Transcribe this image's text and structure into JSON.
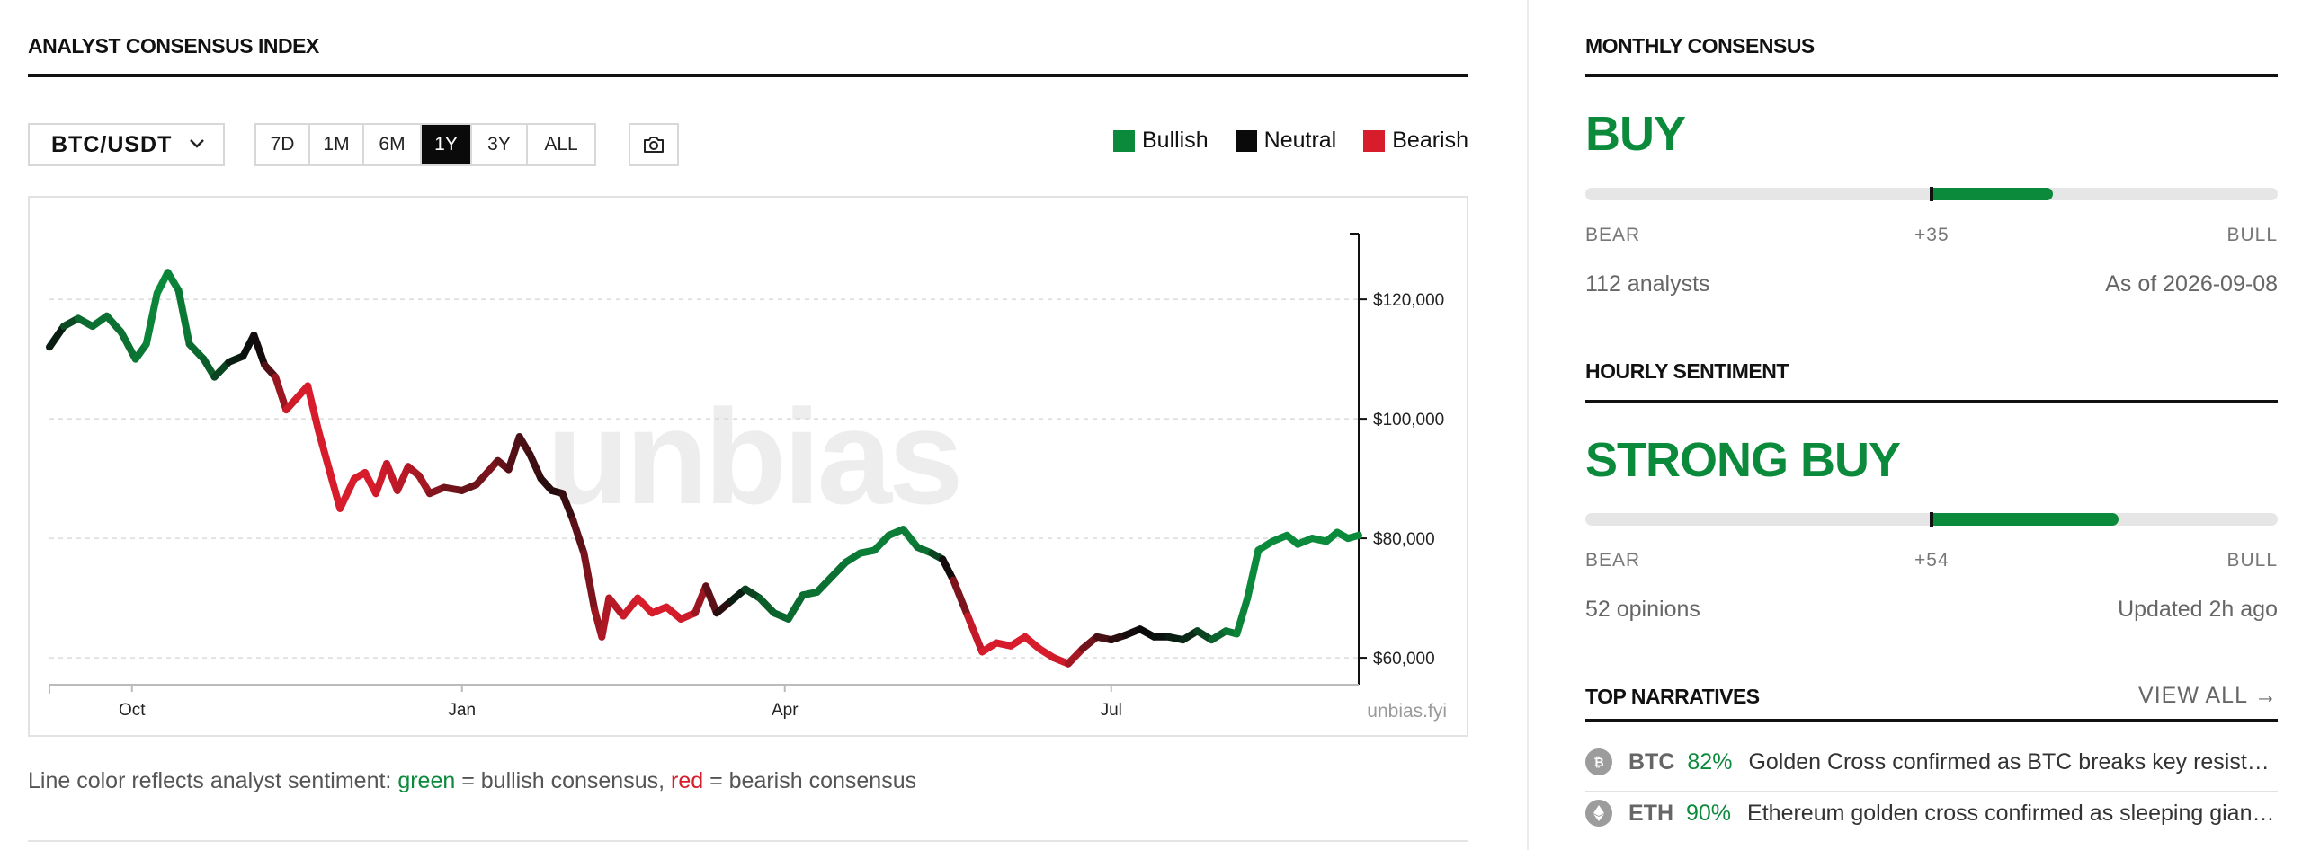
{
  "left": {
    "title": "ANALYST CONSENSUS INDEX",
    "pair": "BTC/USDT",
    "ranges": [
      "7D",
      "1M",
      "6M",
      "1Y",
      "3Y",
      "ALL"
    ],
    "active_range": "1Y",
    "legend": [
      {
        "label": "Bullish",
        "color": "#0b8a3c"
      },
      {
        "label": "Neutral",
        "color": "#0a0a0a"
      },
      {
        "label": "Bearish",
        "color": "#d71c2c"
      }
    ],
    "watermark": "unbias",
    "credit": "unbias.fyi",
    "caption": {
      "prefix": "Line color reflects analyst sentiment: ",
      "green_word": "green",
      "middle": " = bullish consensus, ",
      "red_word": "red",
      "suffix": " = bearish consensus"
    }
  },
  "chart_data": {
    "type": "line",
    "title": "",
    "xlabel": "",
    "ylabel": "",
    "x_ticks": [
      "Oct",
      "Jan",
      "Apr",
      "Jul"
    ],
    "y_ticks": [
      "$60,000",
      "$80,000",
      "$100,000",
      "$120,000"
    ],
    "y_tick_values": [
      60000,
      80000,
      100000,
      120000
    ],
    "ylim": [
      55500,
      131000
    ],
    "xlim": [
      "2025-09-08",
      "2026-09-08"
    ],
    "grid": "horizontal dashed",
    "axis_side": "right",
    "sentiment_colors": {
      "bullish": "#0b8a3c",
      "neutral": "#0a0a0a",
      "bearish": "#d71c2c"
    },
    "series": [
      {
        "points": [
          [
            "2025-09-08",
            112000,
            0
          ],
          [
            "2025-09-12",
            115500,
            0.3
          ],
          [
            "2025-09-16",
            116800,
            0.7
          ],
          [
            "2025-09-20",
            115500,
            0.8
          ],
          [
            "2025-09-24",
            117200,
            0.8
          ],
          [
            "2025-09-28",
            114500,
            0.8
          ],
          [
            "2025-10-02",
            110000,
            0.8
          ],
          [
            "2025-10-05",
            112500,
            0.9
          ],
          [
            "2025-10-08",
            121000,
            1
          ],
          [
            "2025-10-11",
            124500,
            1
          ],
          [
            "2025-10-14",
            121500,
            0.9
          ],
          [
            "2025-10-17",
            112500,
            0.8
          ],
          [
            "2025-10-21",
            110000,
            0.7
          ],
          [
            "2025-10-24",
            107000,
            0.6
          ],
          [
            "2025-10-28",
            109500,
            0.3
          ],
          [
            "2025-11-01",
            110500,
            0
          ],
          [
            "2025-11-04",
            114000,
            0.1
          ],
          [
            "2025-11-07",
            109000,
            -0.2
          ],
          [
            "2025-11-10",
            107000,
            -0.5
          ],
          [
            "2025-11-13",
            101500,
            -0.9
          ],
          [
            "2025-11-16",
            103500,
            -1
          ],
          [
            "2025-11-19",
            105500,
            -1
          ],
          [
            "2025-11-22",
            98000,
            -1
          ],
          [
            "2025-11-25",
            91500,
            -1
          ],
          [
            "2025-11-28",
            85000,
            -1
          ],
          [
            "2025-12-02",
            90000,
            -1
          ],
          [
            "2025-12-05",
            91000,
            -1
          ],
          [
            "2025-12-08",
            87500,
            -1
          ],
          [
            "2025-12-11",
            92500,
            -0.9
          ],
          [
            "2025-12-14",
            88000,
            -0.9
          ],
          [
            "2025-12-17",
            92000,
            -0.8
          ],
          [
            "2025-12-20",
            90500,
            -0.8
          ],
          [
            "2025-12-23",
            87500,
            -0.7
          ],
          [
            "2025-12-27",
            88500,
            -0.5
          ],
          [
            "2026-01-01",
            88000,
            -0.5
          ],
          [
            "2026-01-05",
            89000,
            -0.4
          ],
          [
            "2026-01-08",
            91000,
            -0.6
          ],
          [
            "2026-01-11",
            93000,
            -0.5
          ],
          [
            "2026-01-14",
            91500,
            -0.4
          ],
          [
            "2026-01-17",
            97000,
            -0.3
          ],
          [
            "2026-01-20",
            94000,
            -0.3
          ],
          [
            "2026-01-23",
            90000,
            -0.2
          ],
          [
            "2026-01-26",
            88000,
            -0.1
          ],
          [
            "2026-01-29",
            87500,
            -0.15
          ],
          [
            "2026-02-01",
            83000,
            -0.3
          ],
          [
            "2026-02-04",
            77500,
            -0.5
          ],
          [
            "2026-02-07",
            68000,
            -0.6
          ],
          [
            "2026-02-09",
            63500,
            -0.8
          ],
          [
            "2026-02-11",
            70000,
            -0.8
          ],
          [
            "2026-02-15",
            67000,
            -0.9
          ],
          [
            "2026-02-19",
            70000,
            -1
          ],
          [
            "2026-02-23",
            67500,
            -1
          ],
          [
            "2026-02-27",
            68500,
            -1
          ],
          [
            "2026-03-03",
            66500,
            -1
          ],
          [
            "2026-03-07",
            67500,
            -0.9
          ],
          [
            "2026-03-10",
            72000,
            -0.5
          ],
          [
            "2026-03-13",
            67500,
            -0.3
          ],
          [
            "2026-03-17",
            69500,
            0
          ],
          [
            "2026-03-21",
            71500,
            0.3
          ],
          [
            "2026-03-25",
            70000,
            0.6
          ],
          [
            "2026-03-29",
            67500,
            0.7
          ],
          [
            "2026-04-02",
            66500,
            0.7
          ],
          [
            "2026-04-06",
            70500,
            0.8
          ],
          [
            "2026-04-10",
            71000,
            0.8
          ],
          [
            "2026-04-14",
            73500,
            0.8
          ],
          [
            "2026-04-18",
            76000,
            0.8
          ],
          [
            "2026-04-22",
            77500,
            0.9
          ],
          [
            "2026-04-26",
            78000,
            0.9
          ],
          [
            "2026-04-30",
            80500,
            0.9
          ],
          [
            "2026-05-04",
            81500,
            0.9
          ],
          [
            "2026-05-08",
            78500,
            0.9
          ],
          [
            "2026-05-12",
            77500,
            0.7
          ],
          [
            "2026-05-15",
            76500,
            0.2
          ],
          [
            "2026-05-18",
            73000,
            -0.3
          ],
          [
            "2026-05-22",
            67000,
            -0.8
          ],
          [
            "2026-05-26",
            61000,
            -1
          ],
          [
            "2026-05-30",
            62500,
            -1
          ],
          [
            "2026-06-03",
            62000,
            -1
          ],
          [
            "2026-06-07",
            63500,
            -1
          ],
          [
            "2026-06-11",
            61500,
            -1
          ],
          [
            "2026-06-15",
            60000,
            -1
          ],
          [
            "2026-06-19",
            59000,
            -0.9
          ],
          [
            "2026-06-23",
            61500,
            -0.6
          ],
          [
            "2026-06-27",
            63500,
            -0.4
          ],
          [
            "2026-07-01",
            63000,
            -0.2
          ],
          [
            "2026-07-05",
            63800,
            -0.1
          ],
          [
            "2026-07-09",
            64800,
            0
          ],
          [
            "2026-07-13",
            63500,
            0
          ],
          [
            "2026-07-17",
            63500,
            0.1
          ],
          [
            "2026-07-21",
            63000,
            0.2
          ],
          [
            "2026-07-25",
            64500,
            0.3
          ],
          [
            "2026-07-29",
            63000,
            0.6
          ],
          [
            "2026-08-02",
            64500,
            0.8
          ],
          [
            "2026-08-05",
            64000,
            0.9
          ],
          [
            "2026-08-08",
            70000,
            1
          ],
          [
            "2026-08-11",
            78000,
            1
          ],
          [
            "2026-08-15",
            79500,
            1
          ],
          [
            "2026-08-19",
            80500,
            1
          ],
          [
            "2026-08-22",
            79000,
            1
          ],
          [
            "2026-08-26",
            80000,
            1
          ],
          [
            "2026-08-30",
            79500,
            1
          ],
          [
            "2026-09-02",
            81000,
            1
          ],
          [
            "2026-09-05",
            80000,
            1
          ],
          [
            "2026-09-08",
            80500,
            1
          ]
        ]
      }
    ]
  },
  "right": {
    "monthly": {
      "title": "MONTHLY CONSENSUS",
      "verdict": "BUY",
      "score": "+35",
      "score_fraction": 0.35,
      "bear": "BEAR",
      "bull": "BULL",
      "count": "112 analysts",
      "updated": "As of 2026-09-08"
    },
    "hourly": {
      "title": "HOURLY SENTIMENT",
      "verdict": "STRONG BUY",
      "score": "+54",
      "score_fraction": 0.54,
      "bear": "BEAR",
      "bull": "BULL",
      "count": "52 opinions",
      "updated": "Updated 2h ago"
    },
    "narratives": {
      "title": "TOP NARRATIVES",
      "view_all": "VIEW ALL →",
      "items": [
        {
          "symbol": "BTC",
          "pct": "82%",
          "text": "Golden Cross confirmed as BTC breaks key resistance",
          "icon": "bitcoin-icon"
        },
        {
          "symbol": "ETH",
          "pct": "90%",
          "text": "Ethereum golden cross confirmed as sleeping giant awakens",
          "icon": "ethereum-icon"
        }
      ]
    }
  }
}
